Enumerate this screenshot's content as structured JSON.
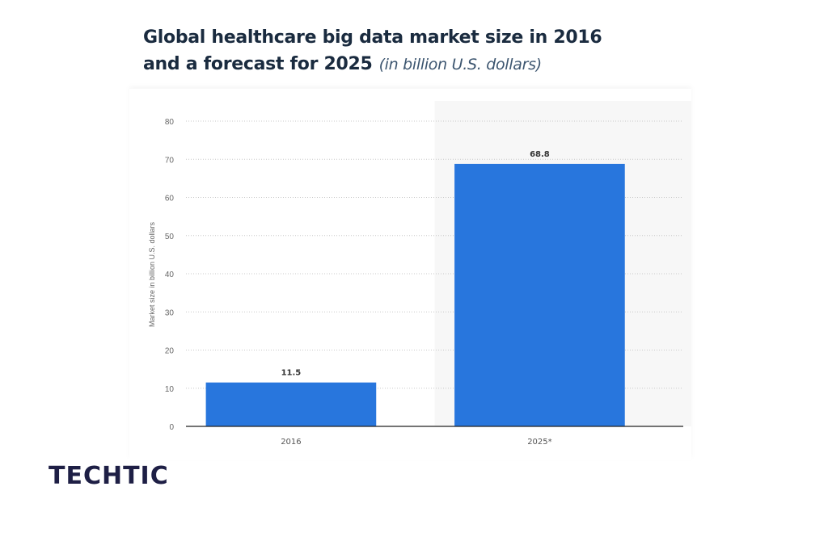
{
  "title": "Global healthcare big data market size in 2016 and a forecast for 2025",
  "title_line1": "Global healthcare big data market size in 2016",
  "title_line2": "and a forecast for 2025",
  "subtitle": "(in billion U.S. dollars)",
  "logo": "TECHTIC",
  "chart_data": {
    "type": "bar",
    "categories": [
      "2016",
      "2025*"
    ],
    "values": [
      11.5,
      68.8
    ],
    "value_labels": [
      "11.5",
      "68.8"
    ],
    "ylabel": "Market size in billion U.S. dollars",
    "xlabel": "",
    "ylim": [
      0,
      80
    ],
    "yticks": [
      0,
      10,
      20,
      30,
      40,
      50,
      60,
      70,
      80
    ],
    "grid": true,
    "highlighted_category": "2025*",
    "bar_color": "#2876dd",
    "highlight_bg": "#f7f7f7"
  }
}
